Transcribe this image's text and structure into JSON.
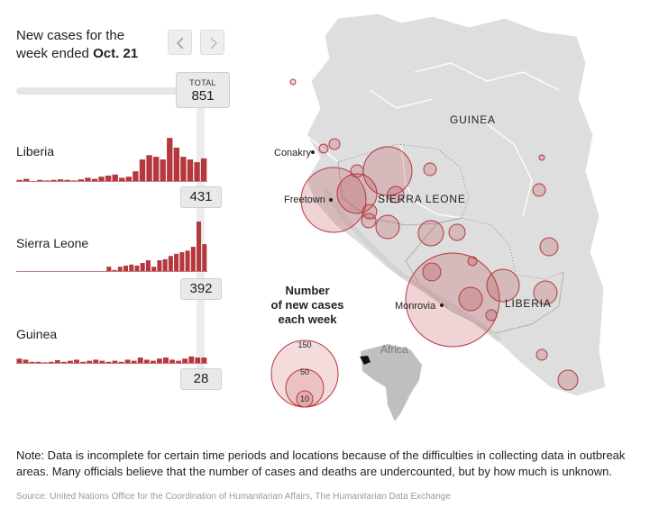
{
  "header": {
    "title_line1": "New cases for the",
    "title_line2_prefix": "week ended",
    "title_line2_bold": "Oct. 21"
  },
  "total": {
    "label": "TOTAL",
    "value": "851"
  },
  "countries": [
    {
      "name": "Liberia",
      "value": "431",
      "weekly_cases": [
        2,
        4,
        0,
        2,
        1,
        2,
        3,
        2,
        1,
        3,
        6,
        4,
        8,
        10,
        12,
        6,
        8,
        18,
        40,
        48,
        45,
        40,
        80,
        62,
        45,
        40,
        35,
        42
      ]
    },
    {
      "name": "Sierra Leone",
      "value": "392",
      "weekly_cases": [
        0,
        0,
        0,
        0,
        0,
        0,
        0,
        0,
        0,
        0,
        0,
        0,
        0,
        0,
        0,
        0,
        8,
        2,
        8,
        10,
        12,
        10,
        15,
        20,
        8,
        20,
        22,
        28,
        32,
        35,
        38,
        45,
        92,
        50
      ]
    },
    {
      "name": "Guinea",
      "value": "28",
      "weekly_cases": [
        8,
        6,
        2,
        2,
        1,
        2,
        5,
        2,
        4,
        6,
        2,
        4,
        6,
        4,
        2,
        4,
        2,
        6,
        4,
        10,
        6,
        4,
        8,
        10,
        6,
        4,
        8,
        12,
        10,
        10
      ]
    }
  ],
  "map": {
    "country_labels": [
      "GUINEA",
      "SIERRA LEONE",
      "LIBERIA"
    ],
    "city_labels": [
      "Conakry",
      "Freetown",
      "Monrovia"
    ],
    "inset_label": "Africa",
    "bubble_color": "#b5383e",
    "land_color": "#dedede"
  },
  "legend": {
    "title_lines": [
      "Number",
      "of new cases",
      "each week"
    ],
    "values": [
      "150",
      "50",
      "10"
    ]
  },
  "note": "Note: Data is incomplete for certain time periods and locations because of the difficulties in collecting data in outbreak areas. Many officials believe that the number of cases and deaths are undercounted, but by how much is unknown.",
  "source": "Source: United Nations Office for the Coordination of Humanitarian Affairs, The Humanitarian Data Exchange"
}
